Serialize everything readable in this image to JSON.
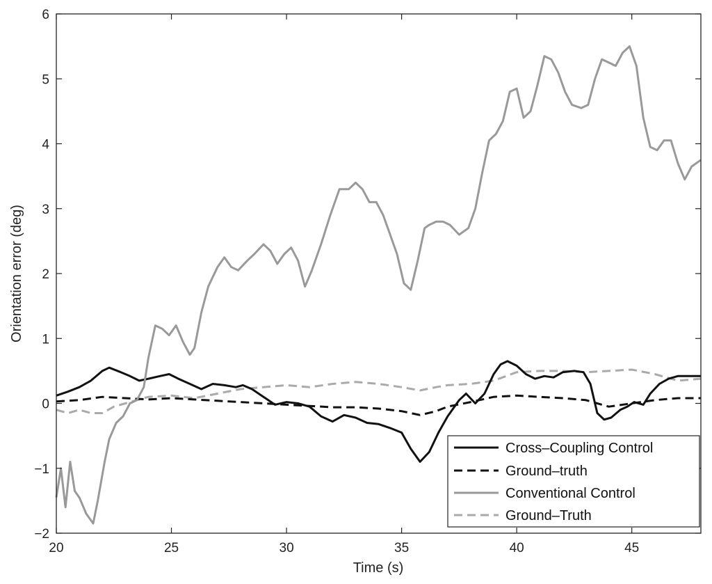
{
  "chart_data": {
    "type": "line",
    "xlabel": "Time (s)",
    "ylabel": "Orientation error (deg)",
    "xlim": [
      20,
      48
    ],
    "ylim": [
      -2,
      6
    ],
    "xticks": [
      20,
      25,
      30,
      35,
      40,
      45
    ],
    "yticks": [
      -2,
      -1,
      0,
      1,
      2,
      3,
      4,
      5,
      6
    ],
    "xtick_labels": [
      "20",
      "25",
      "30",
      "35",
      "40",
      "45"
    ],
    "ytick_labels": [
      "−2",
      "−1",
      "0",
      "1",
      "2",
      "3",
      "4",
      "5",
      "6"
    ],
    "grid": false,
    "legend_position": "bottom-right",
    "series": [
      {
        "name": "Cross–Coupling Control",
        "color": "#111111",
        "dash": "solid",
        "x": [
          20,
          20.5,
          21,
          21.5,
          22,
          22.3,
          22.8,
          23.2,
          23.6,
          24,
          24.5,
          24.9,
          25.3,
          25.8,
          26.3,
          26.8,
          27.3,
          27.8,
          28.1,
          28.5,
          29,
          29.5,
          30,
          30.5,
          31,
          31.5,
          32,
          32.5,
          33,
          33.5,
          34,
          34.5,
          35,
          35.4,
          35.8,
          36.2,
          36.6,
          37,
          37.5,
          37.8,
          38.2,
          38.6,
          39,
          39.3,
          39.6,
          40,
          40.4,
          40.8,
          41.2,
          41.6,
          42,
          42.5,
          42.9,
          43.2,
          43.5,
          43.8,
          44.1,
          44.5,
          44.8,
          45.1,
          45.5,
          45.8,
          46.2,
          46.6,
          47,
          47.5,
          48
        ],
        "y": [
          0.12,
          0.18,
          0.25,
          0.35,
          0.5,
          0.55,
          0.48,
          0.42,
          0.35,
          0.38,
          0.42,
          0.45,
          0.38,
          0.3,
          0.22,
          0.3,
          0.28,
          0.25,
          0.28,
          0.22,
          0.1,
          -0.02,
          0.02,
          0.0,
          -0.05,
          -0.2,
          -0.28,
          -0.18,
          -0.22,
          -0.3,
          -0.32,
          -0.38,
          -0.45,
          -0.7,
          -0.9,
          -0.75,
          -0.45,
          -0.2,
          0.05,
          0.15,
          0.0,
          0.15,
          0.45,
          0.6,
          0.65,
          0.58,
          0.45,
          0.38,
          0.42,
          0.4,
          0.48,
          0.5,
          0.48,
          0.3,
          -0.15,
          -0.25,
          -0.22,
          -0.1,
          -0.05,
          0.02,
          -0.02,
          0.15,
          0.3,
          0.38,
          0.42,
          0.42,
          0.42
        ]
      },
      {
        "name": "Ground–truth",
        "color": "#111111",
        "dash": "dashed",
        "x": [
          20,
          21,
          22,
          23,
          24,
          25,
          26,
          27,
          28,
          29,
          30,
          31,
          32,
          33,
          34,
          35,
          35.8,
          36.5,
          37,
          38,
          39,
          40,
          41,
          42,
          43,
          44,
          45,
          46,
          47,
          48
        ],
        "y": [
          0.03,
          0.05,
          0.1,
          0.08,
          0.06,
          0.08,
          0.06,
          0.04,
          0.02,
          0.0,
          -0.02,
          -0.04,
          -0.06,
          -0.06,
          -0.08,
          -0.12,
          -0.18,
          -0.12,
          -0.05,
          0.02,
          0.1,
          0.12,
          0.1,
          0.08,
          0.05,
          -0.05,
          0.0,
          0.05,
          0.08,
          0.08
        ]
      },
      {
        "name": "Conventional Control",
        "color": "#999999",
        "dash": "solid",
        "x": [
          20,
          20.2,
          20.4,
          20.6,
          20.8,
          21,
          21.3,
          21.6,
          21.8,
          22.1,
          22.3,
          22.6,
          22.9,
          23.2,
          23.5,
          23.8,
          24,
          24.3,
          24.6,
          24.9,
          25.2,
          25.5,
          25.8,
          26,
          26.3,
          26.6,
          27,
          27.3,
          27.6,
          27.9,
          28.3,
          28.6,
          29,
          29.3,
          29.6,
          29.9,
          30.2,
          30.5,
          30.8,
          31.1,
          31.5,
          31.9,
          32.3,
          32.7,
          33,
          33.3,
          33.6,
          33.9,
          34.2,
          34.5,
          34.8,
          35.1,
          35.4,
          35.7,
          36,
          36.2,
          36.5,
          36.8,
          37.1,
          37.5,
          37.9,
          38.2,
          38.5,
          38.8,
          39.1,
          39.4,
          39.7,
          40,
          40.3,
          40.6,
          40.9,
          41.2,
          41.5,
          41.8,
          42.1,
          42.4,
          42.8,
          43.1,
          43.4,
          43.7,
          44,
          44.3,
          44.6,
          44.9,
          45.2,
          45.5,
          45.8,
          46.1,
          46.4,
          46.7,
          47,
          47.3,
          47.6,
          48
        ],
        "y": [
          -1.45,
          -1.0,
          -1.6,
          -0.9,
          -1.35,
          -1.45,
          -1.7,
          -1.85,
          -1.5,
          -0.9,
          -0.55,
          -0.3,
          -0.2,
          0.0,
          0.05,
          0.25,
          0.7,
          1.2,
          1.15,
          1.05,
          1.2,
          0.95,
          0.75,
          0.85,
          1.4,
          1.8,
          2.1,
          2.25,
          2.1,
          2.05,
          2.2,
          2.3,
          2.45,
          2.35,
          2.15,
          2.3,
          2.4,
          2.2,
          1.8,
          2.05,
          2.45,
          2.9,
          3.3,
          3.3,
          3.4,
          3.3,
          3.1,
          3.1,
          2.9,
          2.6,
          2.3,
          1.85,
          1.75,
          2.2,
          2.7,
          2.75,
          2.8,
          2.8,
          2.75,
          2.6,
          2.7,
          3.0,
          3.55,
          4.05,
          4.15,
          4.35,
          4.8,
          4.85,
          4.4,
          4.5,
          4.9,
          5.35,
          5.3,
          5.1,
          4.8,
          4.6,
          4.55,
          4.6,
          5.0,
          5.3,
          5.25,
          5.2,
          5.4,
          5.5,
          5.2,
          4.4,
          3.95,
          3.9,
          4.05,
          4.05,
          3.7,
          3.45,
          3.65,
          3.75
        ]
      },
      {
        "name": "Ground–Truth",
        "color": "#aaaaaa",
        "dash": "dashed",
        "x": [
          20,
          20.5,
          21,
          21.5,
          22,
          22.5,
          23,
          23.5,
          24,
          25,
          26,
          27,
          28,
          29,
          30,
          31,
          32,
          33,
          34,
          35,
          35.8,
          36.5,
          37,
          38,
          39,
          40,
          41,
          42,
          43,
          44,
          45,
          46,
          47,
          48
        ],
        "y": [
          -0.1,
          -0.15,
          -0.1,
          -0.15,
          -0.15,
          -0.05,
          0.0,
          0.05,
          0.1,
          0.12,
          0.08,
          0.15,
          0.22,
          0.25,
          0.28,
          0.25,
          0.3,
          0.33,
          0.3,
          0.25,
          0.2,
          0.25,
          0.28,
          0.3,
          0.35,
          0.48,
          0.5,
          0.5,
          0.48,
          0.5,
          0.52,
          0.45,
          0.35,
          0.38
        ]
      }
    ]
  }
}
